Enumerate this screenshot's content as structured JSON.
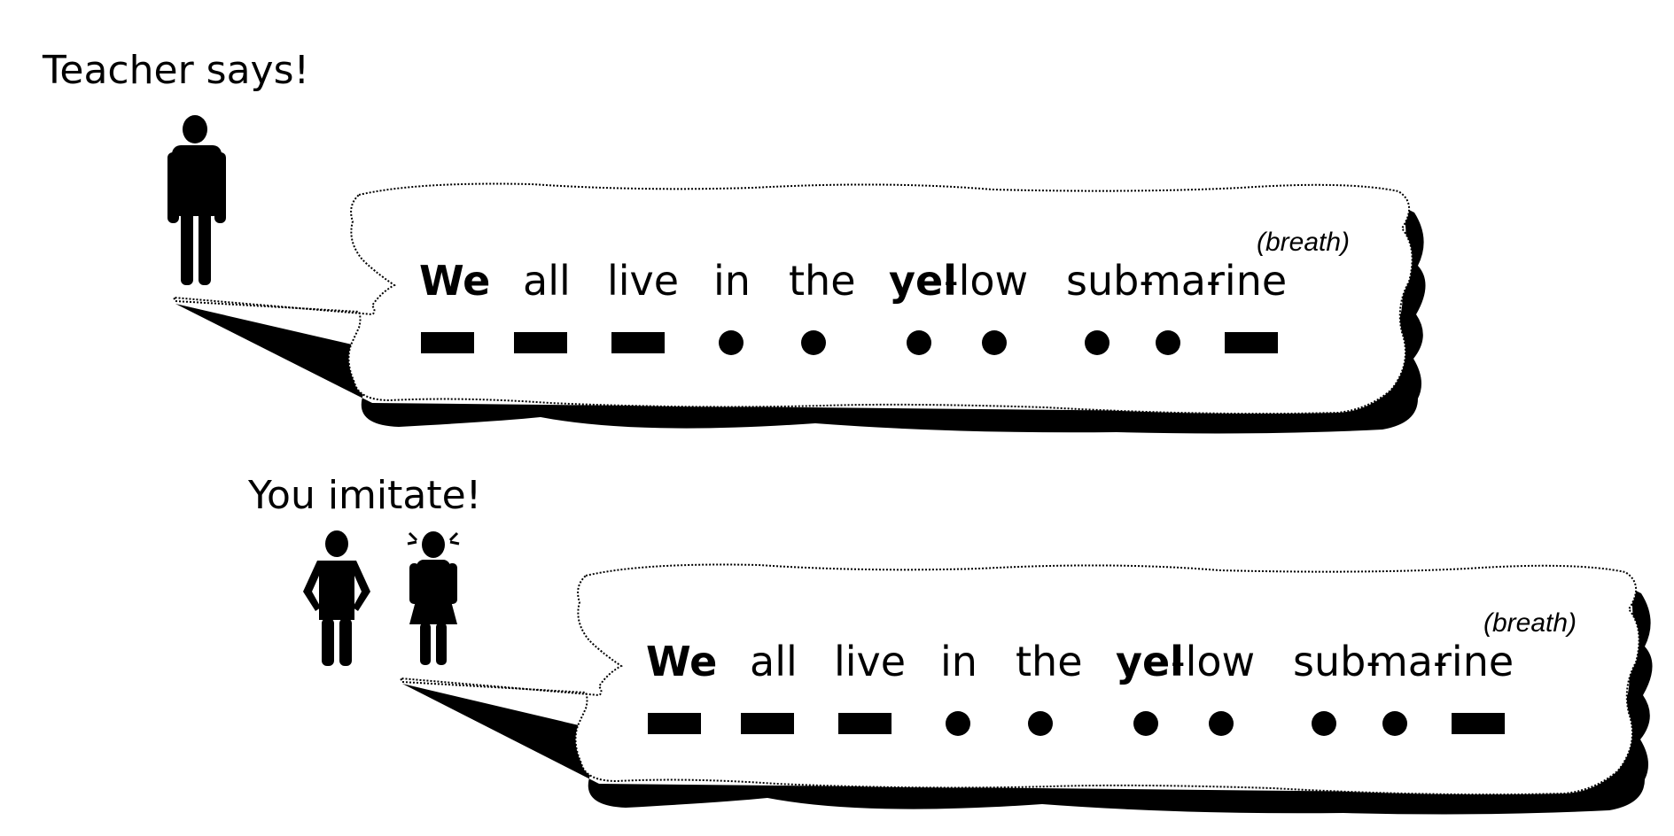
{
  "teacher_caption": "Teacher says!",
  "student_caption": "You imitate!",
  "breath_label": "(breath)",
  "syllables": [
    {
      "text": "We",
      "bold": true,
      "mark": "dash"
    },
    {
      "text": "all",
      "bold": false,
      "mark": "dash"
    },
    {
      "text": "live",
      "bold": false,
      "mark": "dash"
    },
    {
      "text": "in",
      "bold": false,
      "mark": "dot"
    },
    {
      "text": "the",
      "bold": false,
      "mark": "dot"
    },
    {
      "text": "yel",
      "bold": true,
      "mark": "dot"
    },
    {
      "text": "-low",
      "bold": false,
      "mark": "dot"
    },
    {
      "text": "sub-",
      "bold": false,
      "mark": "dot"
    },
    {
      "text": "ma-",
      "bold": false,
      "mark": "dot"
    },
    {
      "text": "rine",
      "bold": false,
      "mark": "dash"
    }
  ],
  "colors": {
    "ink": "#000000",
    "bubble_fill": "#ffffff",
    "shadow": "#000000"
  }
}
